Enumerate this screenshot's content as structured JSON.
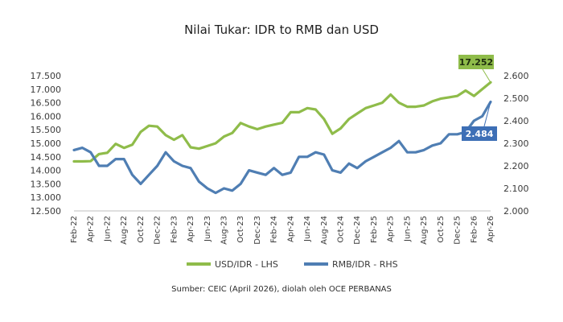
{
  "chart_data": {
    "type": "line",
    "title": "Nilai Tukar: IDR to RMB dan USD",
    "source": "Sumber: CEIC (April 2026), diolah oleh OCE PERBANAS",
    "left_axis": {
      "ylim": [
        12500,
        17500
      ],
      "ticks": [
        "12.500",
        "13.000",
        "13.500",
        "14.000",
        "14.500",
        "15.000",
        "15.500",
        "16.000",
        "16.500",
        "17.000",
        "17.500"
      ]
    },
    "right_axis": {
      "ylim": [
        2000,
        2600
      ],
      "ticks": [
        "2.000",
        "2.100",
        "2.200",
        "2.300",
        "2.400",
        "2.500",
        "2.600"
      ]
    },
    "x_tick_labels": [
      "Feb-22",
      "Apr-22",
      "Jun-22",
      "Aug-22",
      "Oct-22",
      "Dec-22",
      "Feb-23",
      "Apr-23",
      "Jun-23",
      "Aug-23",
      "Oct-23",
      "Dec-23",
      "Feb-24",
      "Apr-24",
      "Jun-24",
      "Aug-24",
      "Oct-24",
      "Dec-24",
      "Feb-25",
      "Apr-25",
      "Jun-25",
      "Aug-25",
      "Oct-25",
      "Dec-25",
      "Feb-26",
      "Apr-26"
    ],
    "x": [
      "Feb-22",
      "Mar-22",
      "Apr-22",
      "May-22",
      "Jun-22",
      "Jul-22",
      "Aug-22",
      "Sep-22",
      "Oct-22",
      "Nov-22",
      "Dec-22",
      "Jan-23",
      "Feb-23",
      "Mar-23",
      "Apr-23",
      "May-23",
      "Jun-23",
      "Jul-23",
      "Aug-23",
      "Sep-23",
      "Oct-23",
      "Nov-23",
      "Dec-23",
      "Jan-24",
      "Feb-24",
      "Mar-24",
      "Apr-24",
      "May-24",
      "Jun-24",
      "Jul-24",
      "Aug-24",
      "Sep-24",
      "Oct-24",
      "Nov-24",
      "Dec-24",
      "Jan-25",
      "Feb-25",
      "Mar-25",
      "Apr-25",
      "May-25",
      "Jun-25",
      "Jul-25",
      "Aug-25",
      "Sep-25",
      "Oct-25",
      "Nov-25",
      "Dec-25",
      "Jan-26",
      "Feb-26",
      "Mar-26",
      "Apr-26"
    ],
    "series": [
      {
        "name": "USD/IDR - LHS",
        "axis": "left",
        "color": "#8fbc4a",
        "values": [
          14330,
          14330,
          14340,
          14600,
          14650,
          14980,
          14830,
          14950,
          15420,
          15650,
          15620,
          15300,
          15130,
          15300,
          14850,
          14800,
          14900,
          15000,
          15250,
          15380,
          15750,
          15620,
          15520,
          15620,
          15690,
          15760,
          16150,
          16150,
          16300,
          16250,
          15900,
          15350,
          15550,
          15900,
          16100,
          16300,
          16400,
          16500,
          16800,
          16500,
          16350,
          16350,
          16400,
          16550,
          16650,
          16700,
          16750,
          16950,
          16750,
          17000,
          17252
        ]
      },
      {
        "name": "RMB/IDR - RHS",
        "axis": "right",
        "color": "#4f7eb3",
        "values": [
          2270,
          2280,
          2260,
          2200,
          2200,
          2230,
          2230,
          2160,
          2120,
          2160,
          2200,
          2260,
          2220,
          2200,
          2190,
          2130,
          2100,
          2080,
          2100,
          2090,
          2120,
          2180,
          2170,
          2160,
          2190,
          2160,
          2170,
          2240,
          2240,
          2260,
          2250,
          2180,
          2170,
          2210,
          2190,
          2220,
          2240,
          2260,
          2280,
          2310,
          2260,
          2260,
          2270,
          2290,
          2300,
          2340,
          2340,
          2350,
          2400,
          2420,
          2484
        ]
      }
    ],
    "callouts": [
      {
        "series": "USD/IDR - LHS",
        "label": "17.252",
        "bg": "#8fbc4a",
        "text_color": "#1e2d0e"
      },
      {
        "series": "RMB/IDR - RHS",
        "label": "2.484",
        "bg": "#3d6fb6",
        "text_color": "#ffffff"
      }
    ],
    "grid": false,
    "legend": "bottom"
  }
}
